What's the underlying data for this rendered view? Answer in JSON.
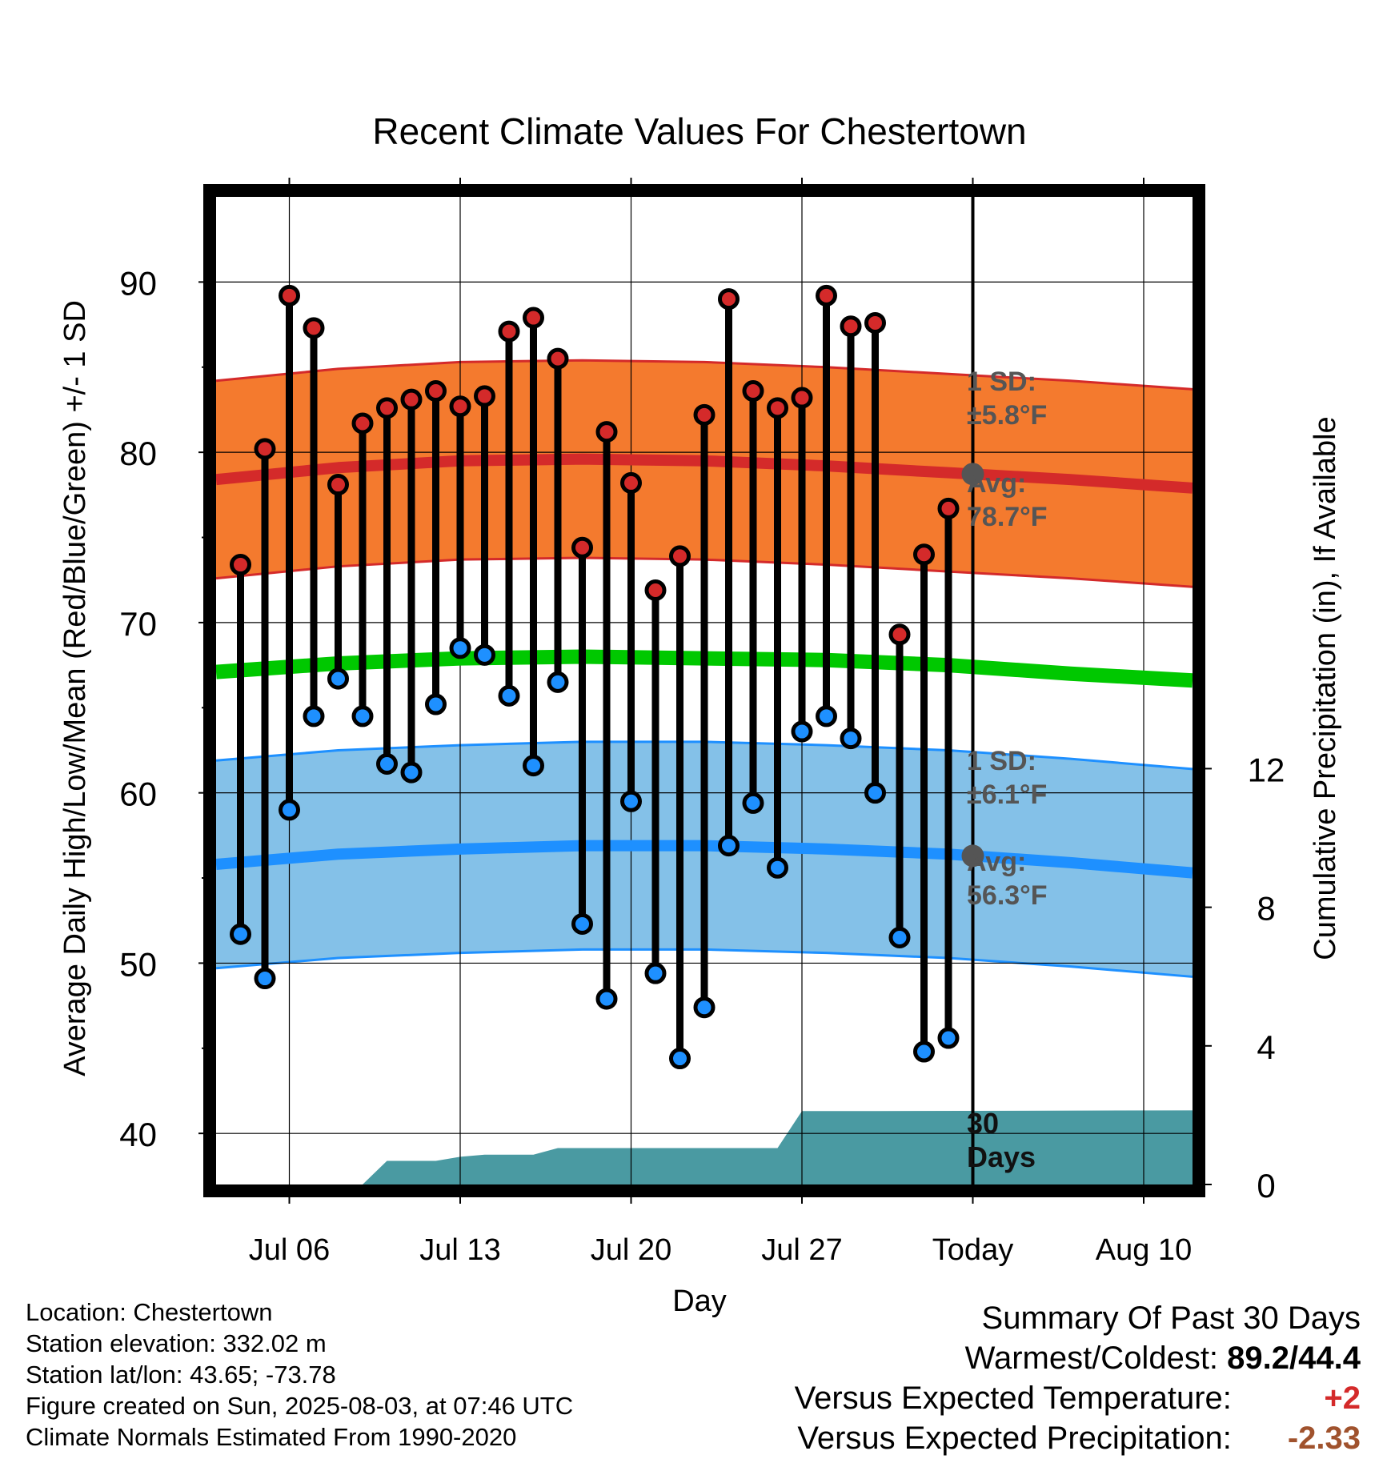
{
  "chart_data": {
    "type": "line",
    "title": "Recent Climate Values For Chestertown",
    "xlabel": "Day",
    "ylabel": "Average Daily High/Low/Mean (Red/Blue/Green) +/- 1 SD",
    "y2label": "Cumulative Precipitation (in), If Available",
    "ylim": [
      37,
      95
    ],
    "y2lim": [
      0,
      28.5
    ],
    "xlim": [
      "2025-07-03",
      "2025-08-12"
    ],
    "x_tick_labels": [
      {
        "date": "2025-07-06",
        "label": "Jul 06"
      },
      {
        "date": "2025-07-13",
        "label": "Jul 13"
      },
      {
        "date": "2025-07-20",
        "label": "Jul 20"
      },
      {
        "date": "2025-07-27",
        "label": "Jul 27"
      },
      {
        "date": "2025-08-03",
        "label": "Today"
      },
      {
        "date": "2025-08-10",
        "label": "Aug 10"
      }
    ],
    "y_ticks": [
      40,
      50,
      60,
      70,
      80,
      90
    ],
    "y2_ticks": [
      0,
      4,
      8,
      12
    ],
    "grid": true,
    "today": "2025-08-03",
    "dates": [
      "2025-07-04",
      "2025-07-05",
      "2025-07-06",
      "2025-07-07",
      "2025-07-08",
      "2025-07-09",
      "2025-07-10",
      "2025-07-11",
      "2025-07-12",
      "2025-07-13",
      "2025-07-14",
      "2025-07-15",
      "2025-07-16",
      "2025-07-17",
      "2025-07-18",
      "2025-07-19",
      "2025-07-20",
      "2025-07-21",
      "2025-07-22",
      "2025-07-23",
      "2025-07-24",
      "2025-07-25",
      "2025-07-26",
      "2025-07-27",
      "2025-07-28",
      "2025-07-29",
      "2025-07-30",
      "2025-07-31",
      "2025-08-01",
      "2025-08-02"
    ],
    "series": [
      {
        "name": "Daily High",
        "color": "#d42a2a",
        "values": [
          73.4,
          80.2,
          89.2,
          87.3,
          78.1,
          81.7,
          82.6,
          83.1,
          83.6,
          82.7,
          83.3,
          87.1,
          87.9,
          85.5,
          74.4,
          81.2,
          78.2,
          71.9,
          73.9,
          82.2,
          89.0,
          83.6,
          82.6,
          83.2,
          89.2,
          87.4,
          87.6,
          69.3,
          74.0,
          76.7
        ]
      },
      {
        "name": "Daily Low",
        "color": "#1e90ff",
        "values": [
          51.7,
          49.1,
          59.0,
          64.5,
          66.7,
          64.5,
          61.7,
          61.2,
          65.2,
          68.5,
          68.1,
          65.7,
          61.6,
          66.5,
          52.3,
          47.9,
          59.5,
          49.4,
          44.4,
          47.4,
          56.9,
          59.4,
          55.6,
          63.6,
          64.5,
          63.2,
          60.0,
          51.5,
          44.8,
          45.6
        ]
      }
    ],
    "normals": {
      "dates": [
        "2025-07-03",
        "2025-07-08",
        "2025-07-13",
        "2025-07-18",
        "2025-07-23",
        "2025-07-28",
        "2025-08-02",
        "2025-08-07",
        "2025-08-12"
      ],
      "high_mean": [
        78.4,
        79.1,
        79.5,
        79.6,
        79.5,
        79.2,
        78.8,
        78.4,
        77.9
      ],
      "high_sd": 5.8,
      "low_mean": [
        55.8,
        56.4,
        56.7,
        56.9,
        56.9,
        56.7,
        56.4,
        55.9,
        55.3
      ],
      "low_sd": 6.1,
      "mean": [
        67.1,
        67.6,
        67.9,
        68.0,
        67.9,
        67.8,
        67.5,
        67.0,
        66.6
      ],
      "high_color": "#f47a2e",
      "high_line_color": "#d42a2a",
      "low_color": "#84c1e8",
      "low_line_color": "#1e90ff",
      "mean_color": "#00c800"
    },
    "precip": {
      "color": "#4a9aa2",
      "dates": [
        "2025-07-03",
        "2025-07-09",
        "2025-07-10",
        "2025-07-12",
        "2025-07-13",
        "2025-07-14",
        "2025-07-16",
        "2025-07-17",
        "2025-07-26",
        "2025-07-27",
        "2025-07-30",
        "2025-08-12"
      ],
      "values": [
        0,
        0,
        0.68,
        0.68,
        0.8,
        0.86,
        0.86,
        1.05,
        1.05,
        2.12,
        2.12,
        2.14
      ]
    },
    "annotations": {
      "high_sd": "1 SD:",
      "high_sd_value": "±5.8°F",
      "high_avg": "Avg:",
      "high_avg_value": "78.7°F",
      "low_sd": "1 SD:",
      "low_sd_value": "±6.1°F",
      "low_avg": "Avg:",
      "low_avg_value": "56.3°F",
      "precip_line1": "30",
      "precip_line2": "Days"
    }
  },
  "footer": {
    "location": "Location: Chestertown",
    "elevation": "Station elevation: 332.02 m",
    "latlon": "Station lat/lon: 43.65; -73.78",
    "created": "Figure created on Sun, 2025-08-03, at 07:46 UTC",
    "normals": "Climate Normals Estimated From 1990-2020"
  },
  "summary": {
    "title": "Summary Of Past 30 Days",
    "warm_cold_label": "Warmest/Coldest:",
    "warm_cold_value": "89.2/44.4",
    "temp_label": "Versus Expected Temperature:",
    "temp_value": "+2",
    "temp_color": "#d42a2a",
    "precip_label": "Versus Expected Precipitation:",
    "precip_value": "-2.33",
    "precip_color": "#a0522d"
  }
}
